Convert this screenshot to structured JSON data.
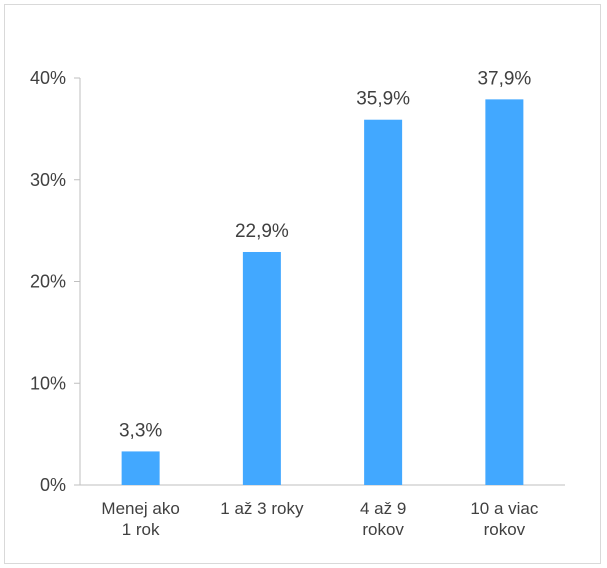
{
  "colors": {
    "bar": "#42A8FF",
    "axis": "#bfbfbf",
    "border": "#d9d9d9",
    "text": "#404040"
  },
  "chart_data": {
    "type": "bar",
    "categories": [
      [
        "Menej ako",
        "1 rok"
      ],
      [
        "1 až 3 roky"
      ],
      [
        "4 až 9",
        "rokov"
      ],
      [
        "10 a viac",
        "rokov"
      ]
    ],
    "values": [
      3.3,
      22.9,
      35.9,
      37.9
    ],
    "data_labels": [
      "3,3%",
      "22,9%",
      "35,9%",
      "37,9%"
    ],
    "yticks": [
      0,
      10,
      20,
      30,
      40
    ],
    "ytick_labels": [
      "0%",
      "10%",
      "20%",
      "30%",
      "40%"
    ],
    "ylim": [
      0,
      40
    ],
    "grid": false,
    "legend": "none"
  }
}
